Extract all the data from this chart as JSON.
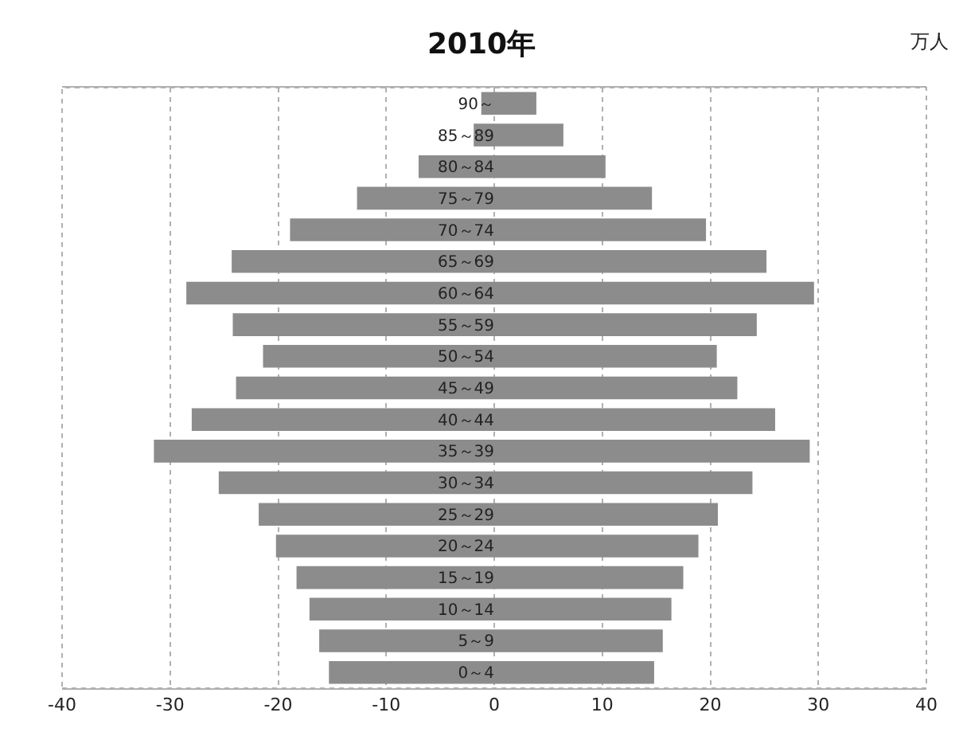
{
  "chart_data": {
    "type": "bar",
    "orientation": "horizontal",
    "stacked": true,
    "title": "2010年",
    "annotations": [
      "万人"
    ],
    "categories": [
      "90～",
      "85～89",
      "80～84",
      "75～79",
      "70～74",
      "65～69",
      "60～64",
      "55～59",
      "50～54",
      "45～49",
      "40～44",
      "35～39",
      "30～34",
      "25～29",
      "20～24",
      "15～19",
      "10～14",
      "5～9",
      "0～4"
    ],
    "series": [
      {
        "color": "#8c8c8c",
        "values": [
          -1.2,
          -1.9,
          -7.0,
          -12.7,
          -18.9,
          -24.3,
          -28.5,
          -24.2,
          -21.4,
          -23.9,
          -28.0,
          -31.5,
          -25.5,
          -21.8,
          -20.2,
          -18.3,
          -17.1,
          -16.2,
          -15.3
        ]
      },
      {
        "color": "#8c8c8c",
        "values": [
          3.9,
          6.4,
          10.3,
          14.6,
          19.6,
          25.2,
          29.6,
          24.3,
          20.6,
          22.5,
          26.0,
          29.2,
          23.9,
          20.7,
          18.9,
          17.5,
          16.4,
          15.6,
          14.8
        ]
      }
    ],
    "xlim": [
      -40,
      40
    ],
    "xticks": [
      -40,
      -30,
      -20,
      -10,
      0,
      10,
      20,
      30,
      40
    ],
    "grid": "x",
    "legend": false
  }
}
